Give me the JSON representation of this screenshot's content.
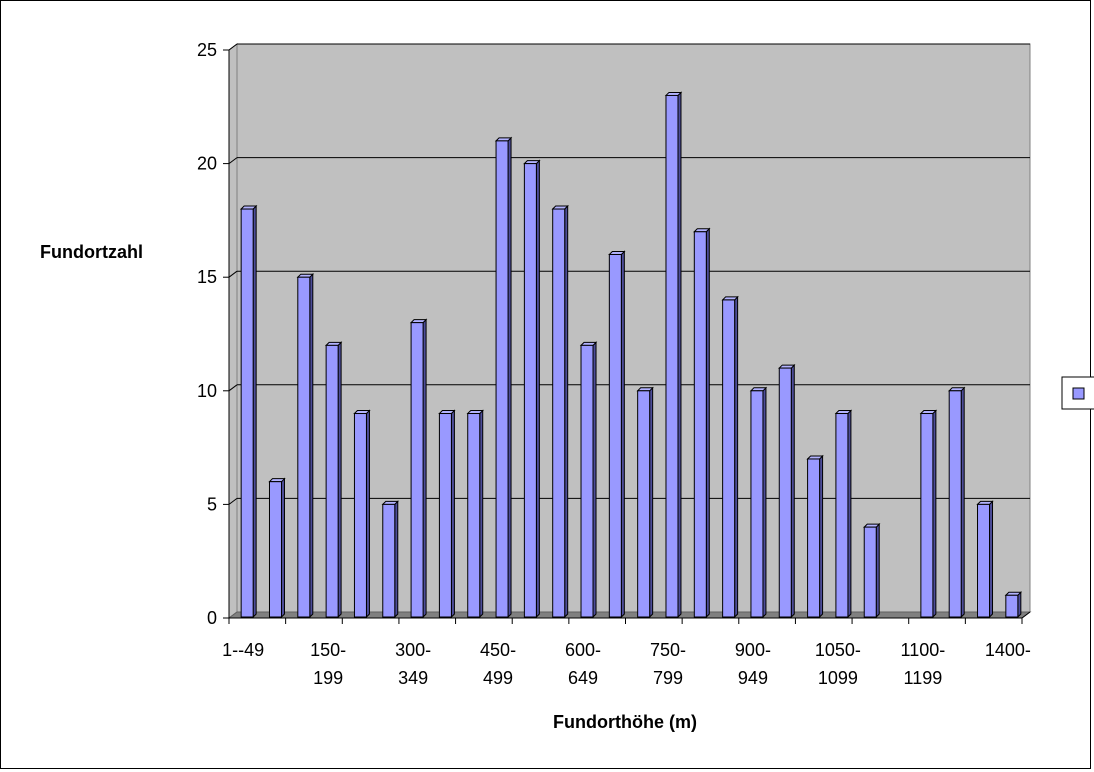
{
  "chart_data": {
    "type": "bar",
    "title": "",
    "xlabel": "Fundorthöhe (m)",
    "ylabel": "Fundortzahl",
    "ylim": [
      0,
      25
    ],
    "yticks": [
      0,
      5,
      10,
      15,
      20,
      25
    ],
    "grid": true,
    "legend_position": "right",
    "bar_color": "#9999ff",
    "wall_color": "#c0c0c0",
    "values": [
      18,
      6,
      15,
      12,
      9,
      5,
      13,
      9,
      9,
      21,
      20,
      18,
      12,
      16,
      10,
      23,
      17,
      14,
      10,
      11,
      7,
      9,
      4,
      0,
      9,
      10,
      5,
      1
    ],
    "xtick_labels": [
      {
        "index": 0,
        "line1": "1--49",
        "line2": ""
      },
      {
        "index": 3,
        "line1": "150-",
        "line2": "199"
      },
      {
        "index": 6,
        "line1": "300-",
        "line2": "349"
      },
      {
        "index": 9,
        "line1": "450-",
        "line2": "499"
      },
      {
        "index": 12,
        "line1": "600-",
        "line2": "649"
      },
      {
        "index": 15,
        "line1": "750-",
        "line2": "799"
      },
      {
        "index": 18,
        "line1": "900-",
        "line2": "949"
      },
      {
        "index": 21,
        "line1": "1050-",
        "line2": "1099"
      },
      {
        "index": 24,
        "line1": "1100-",
        "line2": "1199"
      },
      {
        "index": 27,
        "line1": "1400-",
        "line2": ""
      }
    ]
  }
}
